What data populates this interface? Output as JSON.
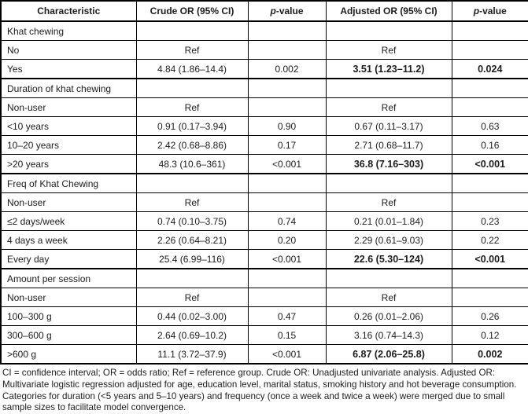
{
  "table": {
    "columns": [
      {
        "label": "Characteristic"
      },
      {
        "label": "Crude OR (95% CI)"
      },
      {
        "label": "p-value"
      },
      {
        "label": "Adjusted OR (95% CI)"
      },
      {
        "label": "p-value"
      }
    ],
    "rows": [
      {
        "type": "section",
        "label": "Khat chewing"
      },
      {
        "type": "data",
        "label": "No",
        "crude_or": "Ref",
        "crude_p": "",
        "adj_or": "Ref",
        "adj_p": "",
        "highlight": false
      },
      {
        "type": "data",
        "label": "Yes",
        "crude_or": "4.84 (1.86–14.4)",
        "crude_p": "0.002",
        "adj_or": "3.51 (1.23–11.2)",
        "adj_p": "0.024",
        "highlight": true
      },
      {
        "type": "section",
        "label": "Duration of khat chewing"
      },
      {
        "type": "data",
        "label": "Non-user",
        "crude_or": "Ref",
        "crude_p": "",
        "adj_or": "Ref",
        "adj_p": "",
        "highlight": false
      },
      {
        "type": "data",
        "label": "<10 years",
        "crude_or": "0.91 (0.17–3.94)",
        "crude_p": "0.90",
        "adj_or": "0.67 (0.11–3.17)",
        "adj_p": "0.63",
        "highlight": false
      },
      {
        "type": "data",
        "label": "10–20 years",
        "crude_or": "2.42 (0.68–8.86)",
        "crude_p": "0.17",
        "adj_or": "2.71 (0.68–11.7)",
        "adj_p": "0.16",
        "highlight": false
      },
      {
        "type": "data",
        "label": ">20 years",
        "crude_or": "48.3 (10.6–361)",
        "crude_p": "<0.001",
        "adj_or": "36.8 (7.16–303)",
        "adj_p": "<0.001",
        "highlight": true
      },
      {
        "type": "section",
        "label": "Freq of  Khat Chewing"
      },
      {
        "type": "data",
        "label": "Non-user",
        "crude_or": "Ref",
        "crude_p": "",
        "adj_or": "Ref",
        "adj_p": "",
        "highlight": false
      },
      {
        "type": "data",
        "label": "≤2 days/week",
        "crude_or": "0.74 (0.10–3.75)",
        "crude_p": "0.74",
        "adj_or": "0.21 (0.01–1.84)",
        "adj_p": "0.23",
        "highlight": false
      },
      {
        "type": "data",
        "label": "4 days a week",
        "crude_or": "2.26 (0.64–8.21)",
        "crude_p": "0.20",
        "adj_or": "2.29 (0.61–9.03)",
        "adj_p": "0.22",
        "highlight": false
      },
      {
        "type": "data",
        "label": "Every day",
        "crude_or": "25.4 (6.99–116)",
        "crude_p": "<0.001",
        "adj_or": "22.6 (5.30–124)",
        "adj_p": "<0.001",
        "highlight": true
      },
      {
        "type": "section",
        "label": "Amount per session"
      },
      {
        "type": "data",
        "label": "Non-user",
        "crude_or": "Ref",
        "crude_p": "",
        "adj_or": "Ref",
        "adj_p": "",
        "highlight": false
      },
      {
        "type": "data",
        "label": "100–300 g",
        "crude_or": "0.44 (0.02–3.00)",
        "crude_p": "0.47",
        "adj_or": "0.26 (0.01–2.06)",
        "adj_p": "0.26",
        "highlight": false
      },
      {
        "type": "data",
        "label": "300–600 g",
        "crude_or": "2.64 (0.69–10.2)",
        "crude_p": "0.15",
        "adj_or": "3.16 (0.74–14.3)",
        "adj_p": "0.12",
        "highlight": false
      },
      {
        "type": "data",
        "label": ">600 g",
        "crude_or": "11.1 (3.72–37.9)",
        "crude_p": "<0.001",
        "adj_or": "6.87 (2.06–25.8)",
        "adj_p": "0.002",
        "highlight": true
      }
    ]
  },
  "footnote": "CI = confidence interval; OR = odds ratio; Ref = reference group. Crude OR: Unadjusted univariate analysis. Adjusted OR: Multivariate logistic regression adjusted for age, education level, marital status, smoking history and hot beverage consumption. Categories for duration (<5 years and 5–10 years) and frequency (once a week and twice a week) were merged due to small sample sizes to facilitate model convergence."
}
